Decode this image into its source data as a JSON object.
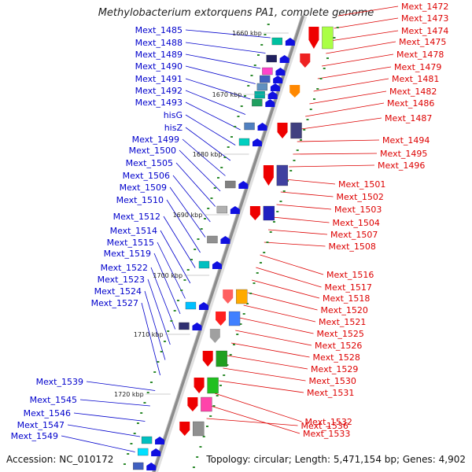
{
  "title": "Methylobacterium extorquens PA1, complete genome",
  "accession": "Accession: NC_010172",
  "topology": "Topology: circular; Length: 5,471,154 bp; Genes: 4,902",
  "colors": {
    "left_label": "#0000cc",
    "right_label": "#dd0000",
    "backbone": "#8c8c8c",
    "tick": "#2e8b2e"
  },
  "kbp_ticks": [
    "1660 kbp",
    "1670 kbp",
    "1680 kbp",
    "1690 kbp",
    "1700 kbp",
    "1710 kbp",
    "1720 kbp"
  ],
  "left_genes": [
    "Mext_1485",
    "Mext_1488",
    "Mext_1489",
    "Mext_1490",
    "Mext_1491",
    "Mext_1492",
    "Mext_1493",
    "hisG",
    "hisZ",
    "Mext_1499",
    "Mext_1500",
    "Mext_1505",
    "Mext_1506",
    "Mext_1509",
    "Mext_1510",
    "Mext_1512",
    "Mext_1514",
    "Mext_1515",
    "Mext_1519",
    "Mext_1522",
    "Mext_1523",
    "Mext_1524",
    "Mext_1527",
    "Mext_1539",
    "Mext_1545",
    "Mext_1546",
    "Mext_1547",
    "Mext_1549"
  ],
  "right_genes": [
    "Mext_1472",
    "Mext_1473",
    "Mext_1474",
    "Mext_1475",
    "Mext_1478",
    "Mext_1479",
    "Mext_1481",
    "Mext_1482",
    "Mext_1486",
    "Mext_1487",
    "Mext_1494",
    "Mext_1495",
    "Mext_1496",
    "Mext_1501",
    "Mext_1502",
    "Mext_1503",
    "Mext_1504",
    "Mext_1507",
    "Mext_1508",
    "Mext_1516",
    "Mext_1517",
    "Mext_1518",
    "Mext_1520",
    "Mext_1521",
    "Mext_1525",
    "Mext_1526",
    "Mext_1528",
    "Mext_1529",
    "Mext_1530",
    "Mext_1531",
    "Mext_1532",
    "Mext_1533",
    "Mext_1536"
  ]
}
